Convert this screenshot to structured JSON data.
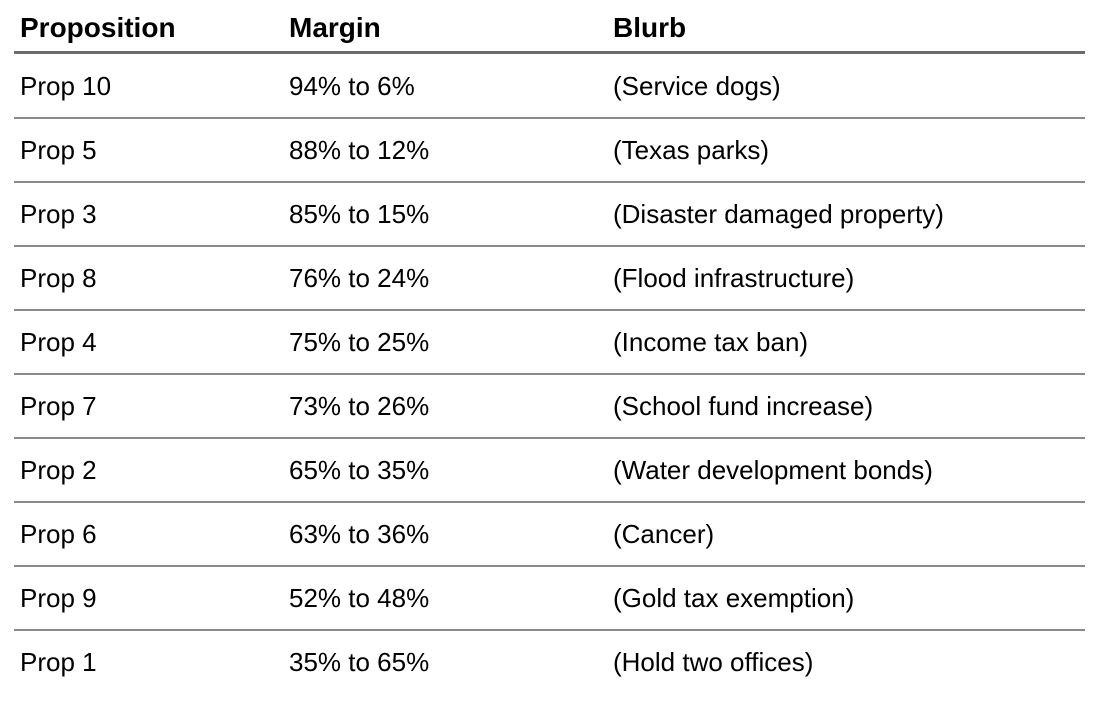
{
  "table": {
    "headers": {
      "proposition": "Proposition",
      "margin": "Margin",
      "blurb": "Blurb"
    },
    "rows": [
      {
        "proposition": "Prop 10",
        "margin": "94% to 6%",
        "blurb": "(Service dogs)"
      },
      {
        "proposition": "Prop 5",
        "margin": "88% to 12%",
        "blurb": "(Texas parks)"
      },
      {
        "proposition": "Prop 3",
        "margin": "85% to 15%",
        "blurb": "(Disaster damaged property)"
      },
      {
        "proposition": "Prop 8",
        "margin": "76% to 24%",
        "blurb": "(Flood infrastructure)"
      },
      {
        "proposition": "Prop 4",
        "margin": "75% to 25%",
        "blurb": "(Income tax ban)"
      },
      {
        "proposition": "Prop 7",
        "margin": "73% to 26%",
        "blurb": "(School fund increase)"
      },
      {
        "proposition": "Prop 2",
        "margin": "65% to 35%",
        "blurb": "(Water development bonds)"
      },
      {
        "proposition": "Prop 6",
        "margin": "63% to 36%",
        "blurb": "(Cancer)"
      },
      {
        "proposition": "Prop 9",
        "margin": "52% to 48%",
        "blurb": "(Gold tax exemption)"
      },
      {
        "proposition": "Prop 1",
        "margin": "35% to 65%",
        "blurb": "(Hold two offices)"
      }
    ]
  }
}
